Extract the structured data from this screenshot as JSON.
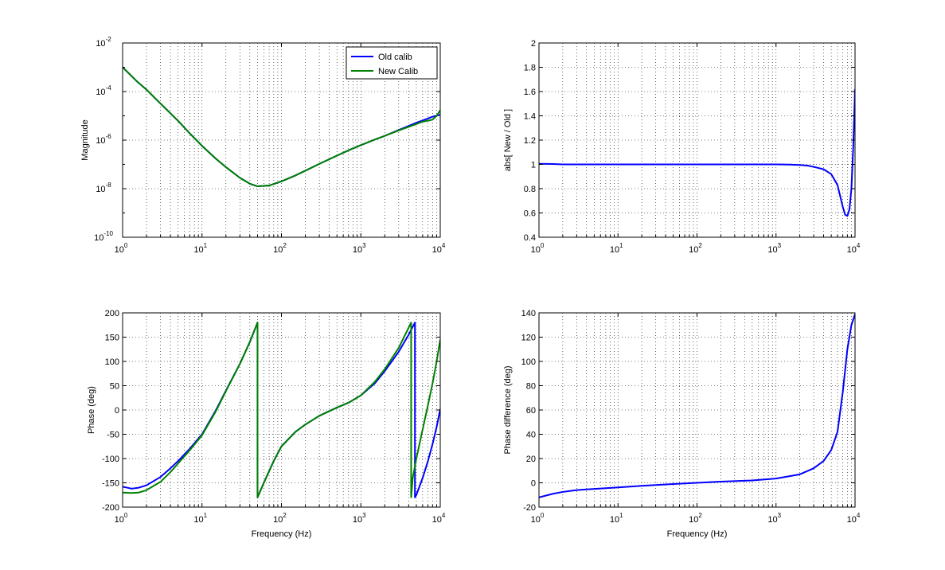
{
  "window": {
    "background": "#ffffff"
  },
  "chart_data": [
    {
      "id": "magnitude",
      "type": "line",
      "xscale": "log",
      "yscale": "log",
      "xlim": [
        1,
        10000
      ],
      "ylim": [
        1e-10,
        0.01
      ],
      "xticks": [
        1,
        10,
        100,
        1000,
        10000
      ],
      "yticks": [
        1e-10,
        1e-08,
        1e-06,
        0.0001,
        0.01
      ],
      "xtick_labels": [
        [
          "10",
          "0"
        ],
        [
          "10",
          "1"
        ],
        [
          "10",
          "2"
        ],
        [
          "10",
          "3"
        ],
        [
          "10",
          "4"
        ]
      ],
      "ytick_labels": [
        [
          "10",
          "-10"
        ],
        [
          "10",
          "-8"
        ],
        [
          "10",
          "-6"
        ],
        [
          "10",
          "-4"
        ],
        [
          "10",
          "-2"
        ]
      ],
      "xlabel": "",
      "ylabel": "Magnitude",
      "grid": "dotted",
      "legend": {
        "placement": "top-right",
        "entries": [
          "Old calib",
          "New Calib"
        ]
      },
      "series": [
        {
          "name": "Old calib",
          "color": "#0000ff",
          "x": [
            1,
            1.5,
            2,
            3,
            5,
            7,
            10,
            15,
            20,
            30,
            40,
            50,
            70,
            100,
            150,
            200,
            300,
            500,
            700,
            1000,
            1500,
            2000,
            3000,
            5000,
            7000,
            8000,
            9000,
            10000
          ],
          "y": [
            0.001,
            0.00027,
            0.00012,
            3.2e-05,
            6.2e-06,
            1.9e-06,
            5.8e-07,
            1.7e-07,
            7.7e-08,
            2.8e-08,
            1.6e-08,
            1.25e-08,
            1.35e-08,
            2e-08,
            3.5e-08,
            5.5e-08,
            1.05e-07,
            2.3e-07,
            3.8e-07,
            6.2e-07,
            1.05e-06,
            1.5e-06,
            2.6e-06,
            5.2e-06,
            7.8e-06,
            9.2e-06,
            1.02e-05,
            1.1e-05
          ]
        },
        {
          "name": "New Calib",
          "color": "#008000",
          "x": [
            1,
            1.5,
            2,
            3,
            5,
            7,
            10,
            15,
            20,
            30,
            40,
            50,
            70,
            100,
            150,
            200,
            300,
            500,
            700,
            1000,
            1500,
            2000,
            3000,
            5000,
            6000,
            7000,
            8000,
            9000,
            10000
          ],
          "y": [
            0.001,
            0.00027,
            0.00012,
            3.2e-05,
            6.2e-06,
            1.9e-06,
            5.8e-07,
            1.7e-07,
            7.7e-08,
            2.8e-08,
            1.6e-08,
            1.25e-08,
            1.35e-08,
            2e-08,
            3.5e-08,
            5.5e-08,
            1.05e-07,
            2.3e-07,
            3.8e-07,
            6.2e-07,
            1.05e-06,
            1.5e-06,
            2.5e-06,
            4.6e-06,
            5.8e-06,
            6.3e-06,
            7e-06,
            1e-05,
            1.7e-05
          ]
        }
      ]
    },
    {
      "id": "magnitude-ratio",
      "type": "line",
      "xscale": "log",
      "yscale": "linear",
      "xlim": [
        1,
        10000
      ],
      "ylim": [
        0.4,
        2
      ],
      "xticks": [
        1,
        10,
        100,
        1000,
        10000
      ],
      "yticks": [
        0.4,
        0.6,
        0.8,
        1,
        1.2,
        1.4,
        1.6,
        1.8,
        2
      ],
      "xtick_labels": [
        [
          "10",
          "0"
        ],
        [
          "10",
          "1"
        ],
        [
          "10",
          "2"
        ],
        [
          "10",
          "3"
        ],
        [
          "10",
          "4"
        ]
      ],
      "ytick_labels": [
        "0.4",
        "0.6",
        "0.8",
        "1",
        "1.2",
        "1.4",
        "1.6",
        "1.8",
        "2"
      ],
      "xlabel": "",
      "ylabel": "abs[ New / Old ]",
      "grid": "dotted",
      "series": [
        {
          "color": "#0000ff",
          "x": [
            1,
            1.5,
            2,
            5,
            10,
            100,
            1000,
            1500,
            2000,
            2500,
            3000,
            4000,
            5000,
            6000,
            7000,
            7500,
            8000,
            8500,
            9000,
            9500,
            10000
          ],
          "y": [
            1.005,
            1.003,
            1.0,
            1.0,
            1.0,
            1.0,
            1.0,
            0.998,
            0.995,
            0.99,
            0.98,
            0.96,
            0.92,
            0.83,
            0.65,
            0.585,
            0.575,
            0.63,
            0.8,
            1.15,
            1.62
          ]
        }
      ]
    },
    {
      "id": "phase",
      "type": "line",
      "xscale": "log",
      "yscale": "linear",
      "xlim": [
        1,
        10000
      ],
      "ylim": [
        -200,
        200
      ],
      "xticks": [
        1,
        10,
        100,
        1000,
        10000
      ],
      "yticks": [
        -200,
        -150,
        -100,
        -50,
        0,
        50,
        100,
        150,
        200
      ],
      "xtick_labels": [
        [
          "10",
          "0"
        ],
        [
          "10",
          "1"
        ],
        [
          "10",
          "2"
        ],
        [
          "10",
          "3"
        ],
        [
          "10",
          "4"
        ]
      ],
      "ytick_labels": [
        "-200",
        "-150",
        "-100",
        "-50",
        "0",
        "50",
        "100",
        "150",
        "200"
      ],
      "xlabel": "Frequency (Hz)",
      "ylabel": "Phase (deg)",
      "grid": "dotted",
      "series": [
        {
          "name": "Old calib",
          "color": "#0000ff",
          "x": [
            1,
            1.3,
            1.6,
            2,
            3,
            4,
            5,
            7,
            10,
            15,
            20,
            30,
            40,
            50,
            50,
            60,
            80,
            100,
            150,
            200,
            300,
            500,
            700,
            1000,
            1500,
            2000,
            3000,
            4000,
            4800,
            4800,
            5000,
            6000,
            7000,
            8000,
            9000,
            10000
          ],
          "y": [
            -158,
            -162,
            -160,
            -155,
            -138,
            -120,
            -105,
            -80,
            -50,
            0,
            40,
            95,
            140,
            180,
            -180,
            -150,
            -105,
            -75,
            -45,
            -30,
            -12,
            5,
            15,
            30,
            55,
            80,
            120,
            155,
            180,
            -180,
            -175,
            -140,
            -105,
            -70,
            -35,
            2
          ]
        },
        {
          "name": "New Calib",
          "color": "#008000",
          "x": [
            1,
            1.3,
            1.6,
            2,
            3,
            4,
            5,
            7,
            10,
            15,
            20,
            30,
            40,
            50,
            50,
            60,
            80,
            100,
            150,
            200,
            300,
            500,
            700,
            1000,
            1500,
            2000,
            3000,
            4300,
            4300,
            4500,
            5000,
            6000,
            7000,
            8000,
            9000,
            10000
          ],
          "y": [
            -170,
            -171,
            -170,
            -165,
            -148,
            -128,
            -110,
            -83,
            -52,
            -2,
            39,
            95,
            140,
            180,
            -180,
            -150,
            -105,
            -75,
            -45,
            -30,
            -12,
            5,
            15,
            30,
            58,
            84,
            128,
            180,
            -180,
            -140,
            -100,
            -40,
            10,
            55,
            100,
            145
          ]
        }
      ]
    },
    {
      "id": "phase-difference",
      "type": "line",
      "xscale": "log",
      "yscale": "linear",
      "xlim": [
        1,
        10000
      ],
      "ylim": [
        -20,
        140
      ],
      "xticks": [
        1,
        10,
        100,
        1000,
        10000
      ],
      "yticks": [
        -20,
        0,
        20,
        40,
        60,
        80,
        100,
        120,
        140
      ],
      "xtick_labels": [
        [
          "10",
          "0"
        ],
        [
          "10",
          "1"
        ],
        [
          "10",
          "2"
        ],
        [
          "10",
          "3"
        ],
        [
          "10",
          "4"
        ]
      ],
      "ytick_labels": [
        "-20",
        "0",
        "20",
        "40",
        "60",
        "80",
        "100",
        "120",
        "140"
      ],
      "xlabel": "Frequency (Hz)",
      "ylabel": "Phase difference (deg)",
      "grid": "dotted",
      "series": [
        {
          "color": "#0000ff",
          "x": [
            1,
            1.5,
            2,
            3,
            5,
            10,
            20,
            50,
            100,
            200,
            500,
            1000,
            2000,
            3000,
            4000,
            5000,
            6000,
            7000,
            8000,
            9000,
            10000
          ],
          "y": [
            -12,
            -9,
            -7.5,
            -6,
            -5,
            -3.8,
            -2.5,
            -1,
            0,
            1,
            2,
            3.5,
            7,
            12,
            18,
            27,
            42,
            75,
            110,
            130,
            139
          ]
        }
      ]
    }
  ]
}
